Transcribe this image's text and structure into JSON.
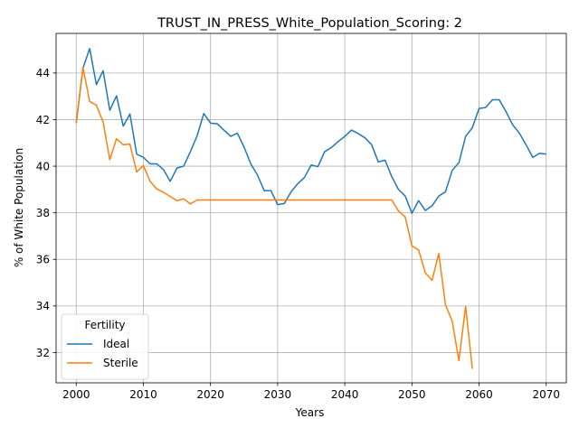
{
  "chart_data": {
    "type": "line",
    "title": "TRUST_IN_PRESS_White_Population_Scoring: 2",
    "xlabel": "Years",
    "ylabel": "% of White Population",
    "xlim": [
      1997,
      2073
    ],
    "ylim": [
      30.7,
      45.7
    ],
    "xticks": [
      2000,
      2010,
      2020,
      2030,
      2040,
      2050,
      2060,
      2070
    ],
    "yticks": [
      32,
      34,
      36,
      38,
      40,
      42,
      44
    ],
    "grid": true,
    "legend": {
      "title": "Fertility",
      "placement": "lower-left"
    },
    "series": [
      {
        "name": "Ideal",
        "color": "#1f77b4",
        "points": [
          [
            2000,
            41.85
          ],
          [
            2001,
            44.2
          ],
          [
            2002,
            45.05
          ],
          [
            2003,
            43.5
          ],
          [
            2004,
            44.1
          ],
          [
            2005,
            42.4
          ],
          [
            2006,
            43.02
          ],
          [
            2007,
            41.72
          ],
          [
            2008,
            42.24
          ],
          [
            2009,
            40.52
          ],
          [
            2010,
            40.38
          ],
          [
            2011,
            40.1
          ],
          [
            2012,
            40.1
          ],
          [
            2013,
            39.85
          ],
          [
            2014,
            39.35
          ],
          [
            2015,
            39.92
          ],
          [
            2016,
            40.0
          ],
          [
            2017,
            40.62
          ],
          [
            2018,
            41.3
          ],
          [
            2019,
            42.26
          ],
          [
            2020,
            41.85
          ],
          [
            2021,
            41.82
          ],
          [
            2022,
            41.55
          ],
          [
            2023,
            41.28
          ],
          [
            2024,
            41.42
          ],
          [
            2025,
            40.82
          ],
          [
            2026,
            40.1
          ],
          [
            2027,
            39.62
          ],
          [
            2028,
            38.95
          ],
          [
            2029,
            38.95
          ],
          [
            2030,
            38.35
          ],
          [
            2031,
            38.4
          ],
          [
            2032,
            38.9
          ],
          [
            2033,
            39.25
          ],
          [
            2034,
            39.52
          ],
          [
            2035,
            40.05
          ],
          [
            2036,
            39.98
          ],
          [
            2037,
            40.62
          ],
          [
            2038,
            40.8
          ],
          [
            2039,
            41.05
          ],
          [
            2040,
            41.28
          ],
          [
            2041,
            41.55
          ],
          [
            2042,
            41.4
          ],
          [
            2043,
            41.22
          ],
          [
            2044,
            40.92
          ],
          [
            2045,
            40.18
          ],
          [
            2046,
            40.26
          ],
          [
            2047,
            39.55
          ],
          [
            2048,
            39.0
          ],
          [
            2049,
            38.72
          ],
          [
            2050,
            37.98
          ],
          [
            2051,
            38.52
          ],
          [
            2052,
            38.1
          ],
          [
            2053,
            38.3
          ],
          [
            2054,
            38.72
          ],
          [
            2055,
            38.9
          ],
          [
            2056,
            39.82
          ],
          [
            2057,
            40.15
          ],
          [
            2058,
            41.28
          ],
          [
            2059,
            41.65
          ],
          [
            2060,
            42.48
          ],
          [
            2061,
            42.52
          ],
          [
            2062,
            42.85
          ],
          [
            2063,
            42.85
          ],
          [
            2064,
            42.35
          ],
          [
            2065,
            41.78
          ],
          [
            2066,
            41.42
          ],
          [
            2067,
            40.92
          ],
          [
            2068,
            40.38
          ],
          [
            2069,
            40.55
          ],
          [
            2070,
            40.52
          ]
        ]
      },
      {
        "name": "Sterile",
        "color": "#ff7f0e",
        "points": [
          [
            2000,
            41.85
          ],
          [
            2001,
            44.25
          ],
          [
            2002,
            42.78
          ],
          [
            2003,
            42.62
          ],
          [
            2004,
            41.9
          ],
          [
            2005,
            40.28
          ],
          [
            2006,
            41.18
          ],
          [
            2007,
            40.92
          ],
          [
            2008,
            40.95
          ],
          [
            2009,
            39.75
          ],
          [
            2010,
            40.03
          ],
          [
            2011,
            39.35
          ],
          [
            2012,
            39.02
          ],
          [
            2013,
            38.88
          ],
          [
            2014,
            38.7
          ],
          [
            2015,
            38.52
          ],
          [
            2016,
            38.6
          ],
          [
            2017,
            38.38
          ],
          [
            2018,
            38.55
          ],
          [
            2019,
            38.55
          ],
          [
            2020,
            38.55
          ],
          [
            2021,
            38.55
          ],
          [
            2022,
            38.55
          ],
          [
            2023,
            38.55
          ],
          [
            2024,
            38.55
          ],
          [
            2025,
            38.55
          ],
          [
            2026,
            38.55
          ],
          [
            2027,
            38.55
          ],
          [
            2028,
            38.55
          ],
          [
            2029,
            38.55
          ],
          [
            2030,
            38.55
          ],
          [
            2031,
            38.55
          ],
          [
            2032,
            38.55
          ],
          [
            2033,
            38.55
          ],
          [
            2034,
            38.55
          ],
          [
            2035,
            38.55
          ],
          [
            2036,
            38.55
          ],
          [
            2037,
            38.55
          ],
          [
            2038,
            38.55
          ],
          [
            2039,
            38.55
          ],
          [
            2040,
            38.55
          ],
          [
            2041,
            38.55
          ],
          [
            2042,
            38.55
          ],
          [
            2043,
            38.55
          ],
          [
            2044,
            38.55
          ],
          [
            2045,
            38.55
          ],
          [
            2046,
            38.55
          ],
          [
            2047,
            38.55
          ],
          [
            2048,
            38.08
          ],
          [
            2049,
            37.82
          ],
          [
            2050,
            36.58
          ],
          [
            2051,
            36.4
          ],
          [
            2052,
            35.42
          ],
          [
            2053,
            35.1
          ],
          [
            2054,
            36.25
          ],
          [
            2055,
            34.05
          ],
          [
            2056,
            33.35
          ],
          [
            2057,
            31.65
          ],
          [
            2058,
            33.98
          ],
          [
            2059,
            31.3
          ]
        ]
      }
    ]
  }
}
